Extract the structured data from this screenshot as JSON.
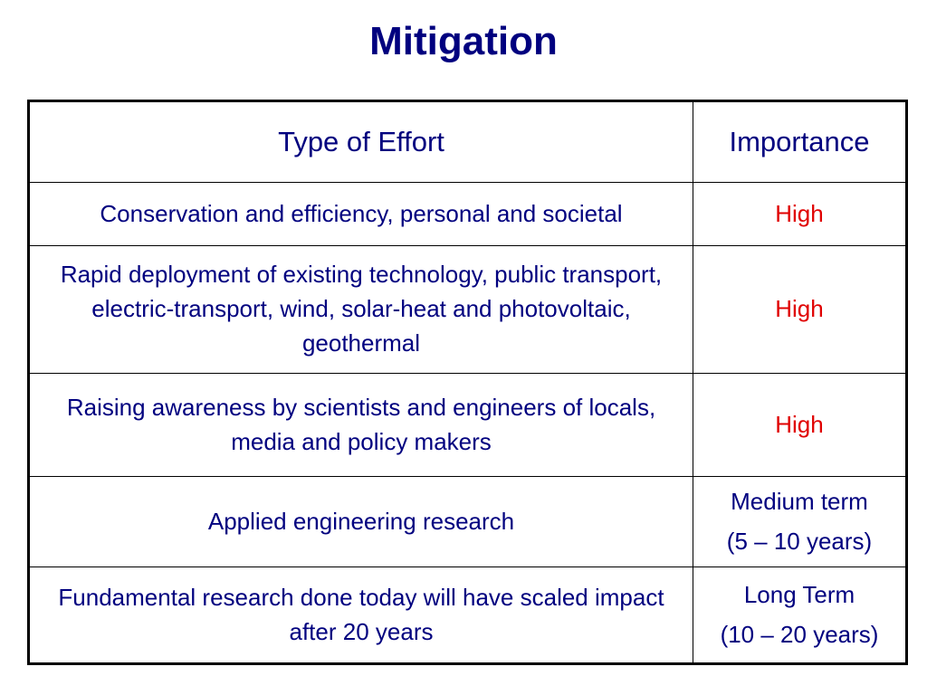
{
  "title": "Mitigation",
  "table": {
    "headers": {
      "effort": "Type of Effort",
      "importance": "Importance"
    },
    "rows": [
      {
        "effort": "Conservation and efficiency, personal and societal",
        "importance": {
          "line1": "High",
          "line2": ""
        }
      },
      {
        "effort": "Rapid deployment of existing technology, public transport, electric-transport, wind, solar-heat and photovoltaic, geothermal",
        "importance": {
          "line1": "High",
          "line2": ""
        }
      },
      {
        "effort": "Raising awareness by scientists and engineers of locals, media and policy makers",
        "importance": {
          "line1": "High",
          "line2": ""
        }
      },
      {
        "effort": "Applied engineering research",
        "importance": {
          "line1": "Medium term",
          "line2": "(5 – 10 years)"
        }
      },
      {
        "effort": "Fundamental research done today will have scaled impact after 20 years",
        "importance": {
          "line1": "Long Term",
          "line2": "(10 – 20 years)"
        }
      }
    ]
  },
  "colors": {
    "text": "#00007f",
    "high": "#e00000",
    "border": "#000000",
    "background": "#ffffff"
  }
}
